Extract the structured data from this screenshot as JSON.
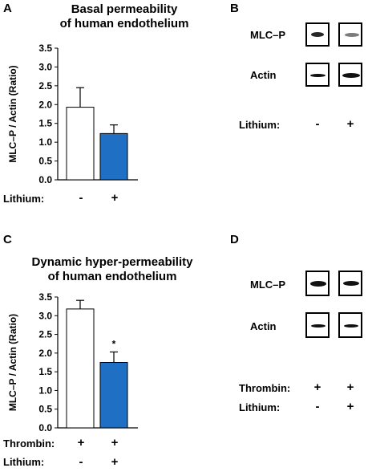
{
  "panels": {
    "A": {
      "letter": "A",
      "title_line1": "Basal permeability",
      "title_line2": "of human endothelium",
      "row1_label": "Lithium:",
      "row1_signs": [
        "-",
        "+"
      ]
    },
    "B": {
      "letter": "B",
      "band_labels": [
        "MLC–P",
        "Actin"
      ],
      "row1_label": "Lithium:",
      "row1_signs": [
        "-",
        "+"
      ]
    },
    "C": {
      "letter": "C",
      "title_line1": "Dynamic hyper-permeability",
      "title_line2": "of human endothelium",
      "row1_label": "Thrombin:",
      "row1_signs": [
        "+",
        "+"
      ],
      "row2_label": "Lithium:",
      "row2_signs": [
        "-",
        "+"
      ],
      "significance": "*"
    },
    "D": {
      "letter": "D",
      "band_labels": [
        "MLC–P",
        "Actin"
      ],
      "row1_label": "Thrombin:",
      "row1_signs": [
        "+",
        "+"
      ],
      "row2_label": "Lithium:",
      "row2_signs": [
        "-",
        "+"
      ]
    }
  },
  "colors": {
    "control_bar": "#ffffff",
    "lithium_bar": "#1f6fc5",
    "bar_edge": "#000000"
  },
  "chart_data": [
    {
      "type": "bar",
      "panel": "A",
      "ylabel": "MLC–P / Actin (Ratio)",
      "ylim": [
        0,
        3.5
      ],
      "yticks": [
        "0.0",
        "0.5",
        "1.0",
        "1.5",
        "2.0",
        "2.5",
        "3.0",
        "3.5"
      ],
      "values": [
        1.93,
        1.23
      ],
      "errors": [
        0.52,
        0.23
      ],
      "grid": false
    },
    {
      "type": "bar",
      "panel": "C",
      "ylabel": "MLC–P / Actin (Ratio)",
      "ylim": [
        0,
        3.5
      ],
      "yticks": [
        "0.0",
        "0.5",
        "1.0",
        "1.5",
        "2.0",
        "2.5",
        "3.0",
        "3.5"
      ],
      "values": [
        3.18,
        1.75
      ],
      "errors": [
        0.23,
        0.28
      ],
      "grid": false
    }
  ]
}
